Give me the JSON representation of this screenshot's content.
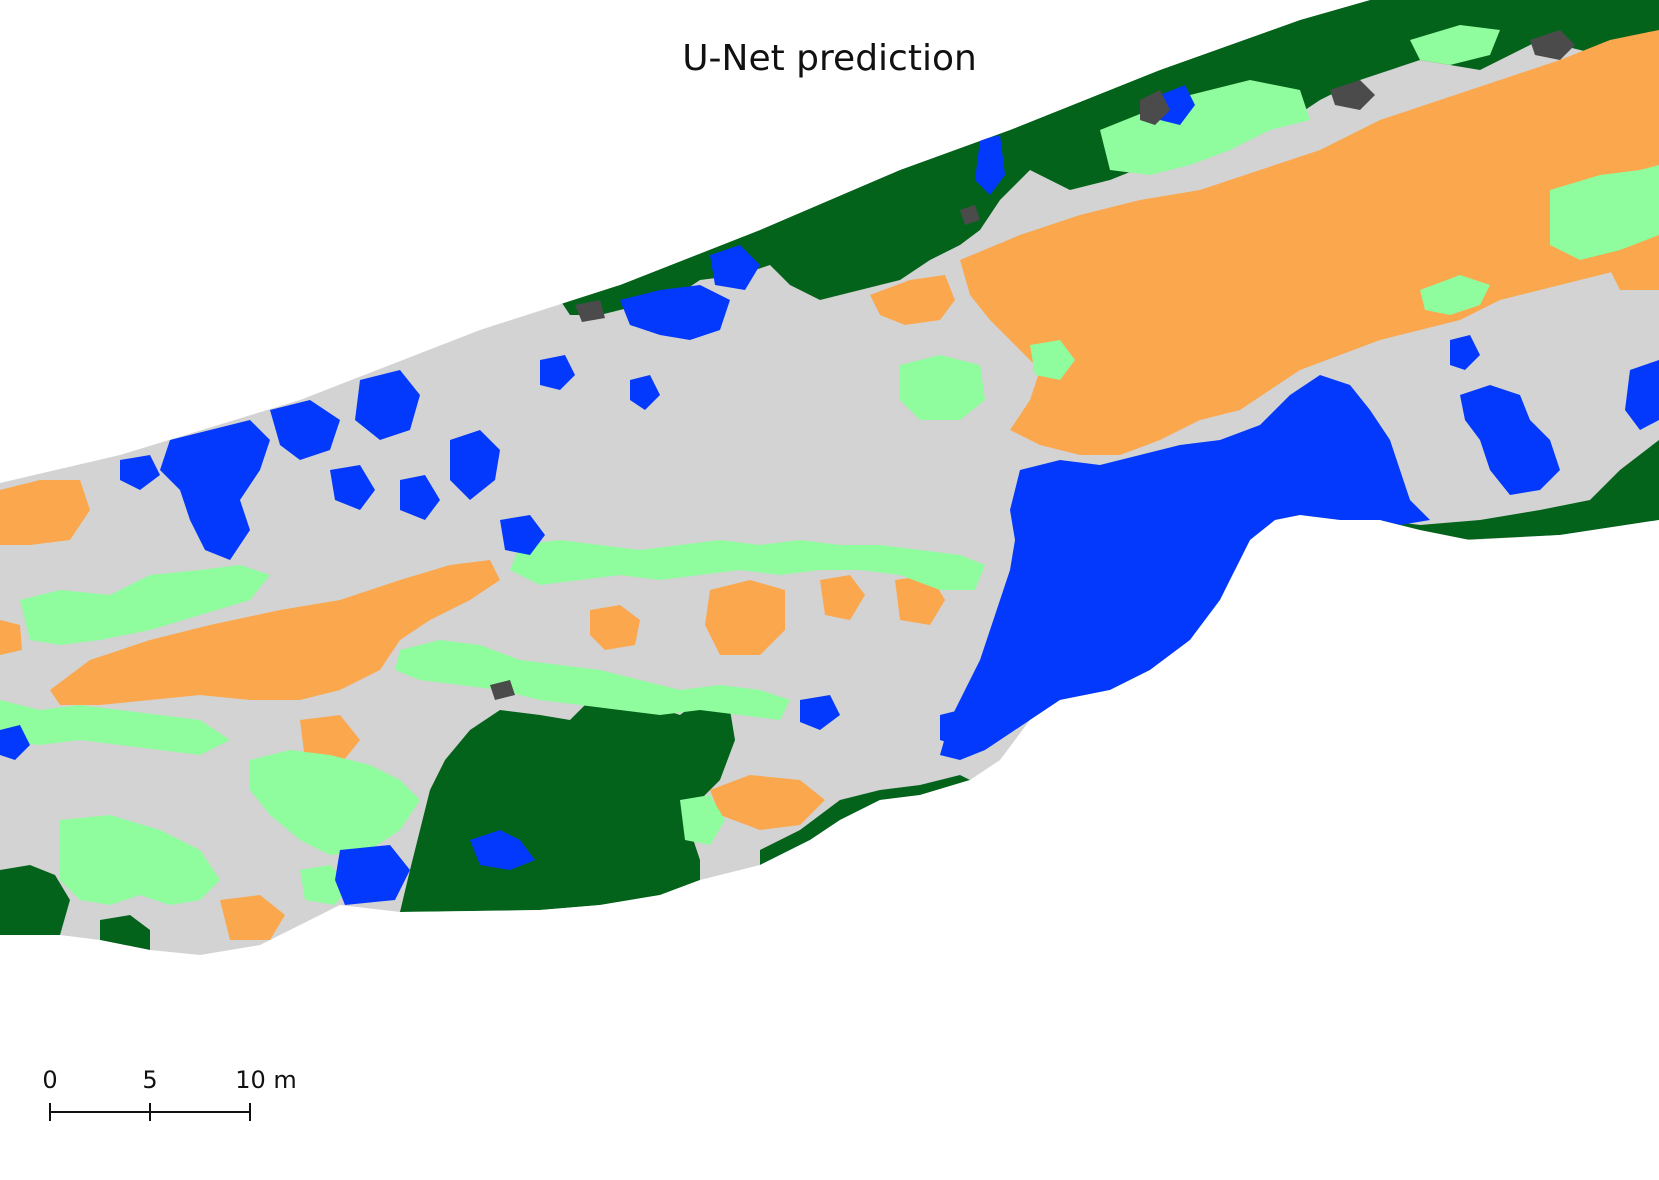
{
  "title": "U-Net prediction",
  "scale_bar": {
    "ticks": [
      "0",
      "5",
      "10 m"
    ],
    "length_m": 10
  },
  "class_colors": {
    "forest": "#03631a",
    "grassland": "#8ffc9d",
    "bare": "#d3d3d3",
    "sand": "#fba74d",
    "water": "#0339fc",
    "shadow": "#4b4b4b"
  }
}
